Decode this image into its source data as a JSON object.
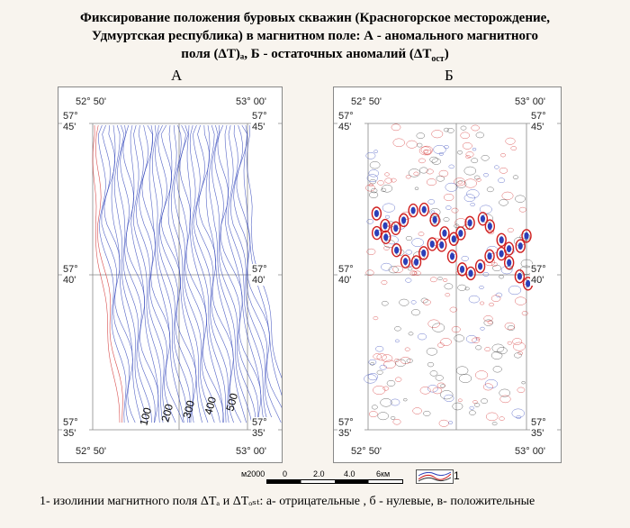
{
  "title": {
    "line1": "Фиксирование положения буровых скважин  (Красногорское  месторождение,",
    "line2": "Удмуртская республика) в магнитном поле: А - аномального магнитного",
    "line3": "поля (ΔТ)ₐ,  Б -  остаточных аномалий  (ΔТ",
    "line3_sub": "ост",
    "line3_end": ")"
  },
  "panel_a": {
    "label": "А",
    "corner_labels": {
      "top_left_lon": "52° 50'",
      "top_right_lon": "53° 00'",
      "top_left_lat": "57° 45'",
      "top_right_lat": "57° 45'",
      "mid_left_lat": "57° 40'",
      "mid_right_lat": "57° 40'",
      "bottom_left_lat": "57° 35'",
      "bottom_right_lat": "57° 35'",
      "bottom_left_lon": "52° 50'",
      "bottom_right_lon": "53° 00'"
    },
    "contour_labels": [
      "100",
      "200",
      "300",
      "400",
      "500"
    ]
  },
  "panel_b": {
    "label": "Б",
    "corner_labels": {
      "top_left_lon": "52° 50'",
      "top_right_lon": "53° 00'",
      "top_left_lat": "57° 45'",
      "top_right_lat": "57° 45'",
      "mid_left_lat": "57° 40'",
      "mid_right_lat": "57° 40'",
      "bottom_left_lat": "57° 35'",
      "bottom_right_lat": "57° 35'",
      "bottom_left_lon": "52° 50'",
      "bottom_right_lon": "53° 00'"
    }
  },
  "scale": {
    "unit_left": "м2000",
    "ticks": [
      "0",
      "2.0",
      "4.0",
      "6км"
    ]
  },
  "legend": {
    "number": "1",
    "caption": "1- изолинии магнитного поля ΔТₐ и ΔТₒₛₜ:  а- отрицательные , б - нулевые, в- положительные"
  },
  "colors": {
    "background": "#f8f4ee",
    "positive_contour": "#2b3fb8",
    "zero_contour": "#303030",
    "negative_contour": "#d02020"
  }
}
